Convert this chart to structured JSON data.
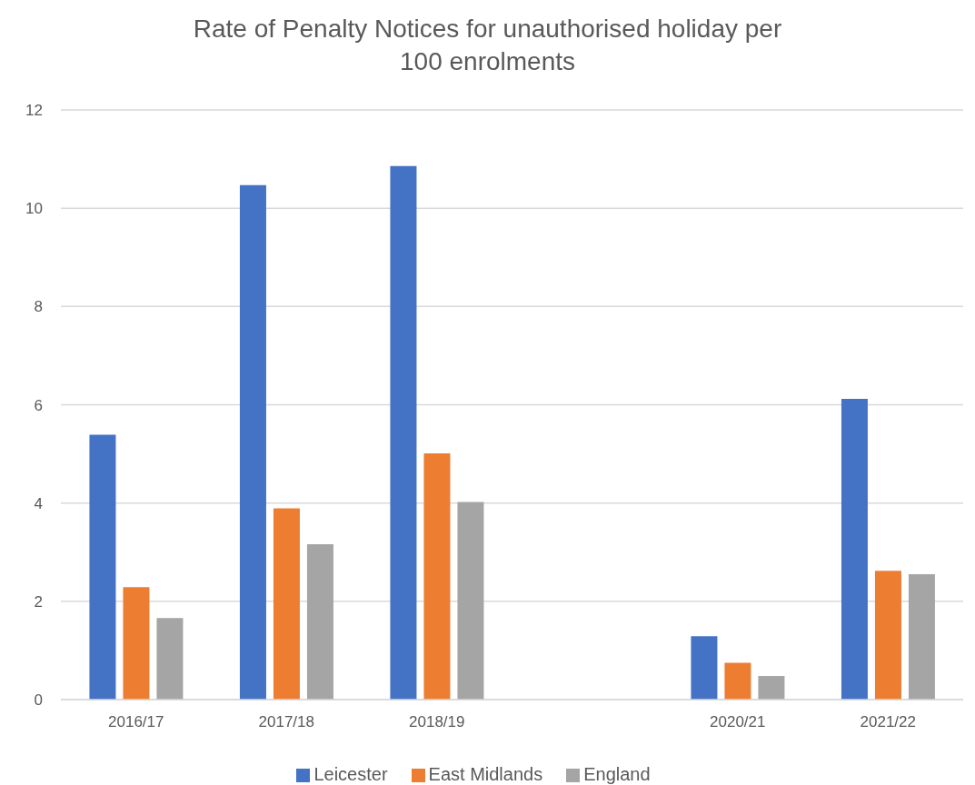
{
  "chart_data": {
    "type": "bar",
    "title": "Rate of Penalty Notices for unauthorised holiday per 100 enrolments",
    "categories": [
      "2016/17",
      "2017/18",
      "2018/19",
      null,
      "2020/21",
      "2021/22"
    ],
    "series": [
      {
        "name": "Leicester",
        "color": "#4472c4",
        "values": [
          5.39,
          10.47,
          10.86,
          null,
          1.29,
          6.12
        ]
      },
      {
        "name": "East Midlands",
        "color": "#ed7d31",
        "values": [
          2.29,
          3.89,
          5.01,
          null,
          0.75,
          2.62
        ]
      },
      {
        "name": "England",
        "color": "#a5a5a5",
        "values": [
          1.66,
          3.16,
          4.02,
          null,
          0.48,
          2.55
        ]
      }
    ],
    "ylim": [
      0,
      12
    ],
    "yticks": [
      0,
      2,
      4,
      6,
      8,
      10,
      12
    ],
    "grid": "y",
    "legend": "bottom"
  }
}
